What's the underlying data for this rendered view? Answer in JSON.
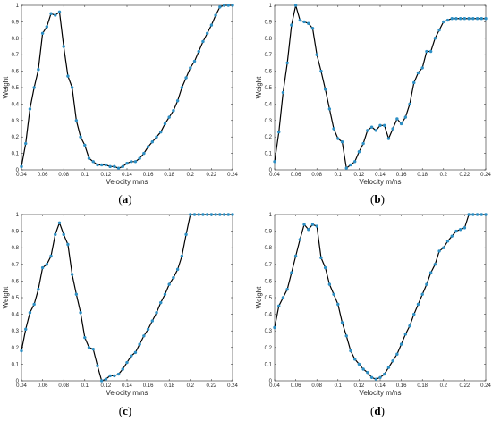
{
  "chart_data": [
    {
      "type": "line",
      "caption": "(a)",
      "xlabel": "Velocity m/ns",
      "ylabel": "Weight",
      "xlim": [
        0.04,
        0.24
      ],
      "ylim": [
        0,
        1
      ],
      "xticks": [
        "0.04",
        "0.06",
        "0.08",
        "0.1",
        "0.12",
        "0.14",
        "0.16",
        "0.18",
        "0.2",
        "0.22",
        "0.24"
      ],
      "yticks": [
        "0",
        "0.1",
        "0.2",
        "0.3",
        "0.4",
        "0.5",
        "0.6",
        "0.7",
        "0.8",
        "0.9",
        "1"
      ],
      "series": [
        {
          "x": [
            0.04,
            0.044,
            0.048,
            0.052,
            0.056,
            0.06,
            0.064,
            0.068,
            0.072,
            0.076,
            0.08,
            0.084,
            0.088,
            0.092,
            0.096,
            0.1,
            0.104,
            0.108,
            0.112,
            0.116,
            0.12,
            0.124,
            0.128,
            0.132,
            0.136,
            0.14,
            0.144,
            0.148,
            0.152,
            0.156,
            0.16,
            0.164,
            0.168,
            0.172,
            0.176,
            0.18,
            0.184,
            0.188,
            0.192,
            0.196,
            0.2,
            0.204,
            0.208,
            0.212,
            0.216,
            0.22,
            0.224,
            0.228,
            0.232,
            0.236,
            0.24
          ],
          "y": [
            0.02,
            0.16,
            0.37,
            0.5,
            0.61,
            0.83,
            0.87,
            0.95,
            0.94,
            0.96,
            0.75,
            0.57,
            0.5,
            0.3,
            0.2,
            0.15,
            0.07,
            0.05,
            0.03,
            0.03,
            0.03,
            0.02,
            0.02,
            0.01,
            0.02,
            0.04,
            0.05,
            0.05,
            0.07,
            0.1,
            0.14,
            0.17,
            0.2,
            0.23,
            0.28,
            0.32,
            0.36,
            0.42,
            0.5,
            0.56,
            0.62,
            0.66,
            0.72,
            0.78,
            0.83,
            0.88,
            0.94,
            0.99,
            1.0,
            1.0,
            1.0
          ]
        }
      ]
    },
    {
      "type": "line",
      "caption": "(b)",
      "xlabel": "Velocity m/ns",
      "ylabel": "Weight",
      "xlim": [
        0.04,
        0.24
      ],
      "ylim": [
        0,
        1
      ],
      "xticks": [
        "0.04",
        "0.06",
        "0.08",
        "0.1",
        "0.12",
        "0.14",
        "0.16",
        "0.18",
        "0.2",
        "0.22",
        "0.24"
      ],
      "yticks": [
        "0",
        "0.1",
        "0.2",
        "0.3",
        "0.4",
        "0.5",
        "0.6",
        "0.7",
        "0.8",
        "0.9",
        "1"
      ],
      "series": [
        {
          "x": [
            0.04,
            0.044,
            0.048,
            0.052,
            0.056,
            0.06,
            0.064,
            0.068,
            0.072,
            0.076,
            0.08,
            0.084,
            0.088,
            0.092,
            0.096,
            0.1,
            0.104,
            0.108,
            0.112,
            0.116,
            0.12,
            0.124,
            0.128,
            0.132,
            0.136,
            0.14,
            0.144,
            0.148,
            0.152,
            0.156,
            0.16,
            0.164,
            0.168,
            0.172,
            0.176,
            0.18,
            0.184,
            0.188,
            0.192,
            0.196,
            0.2,
            0.204,
            0.208,
            0.212,
            0.216,
            0.22,
            0.224,
            0.228,
            0.232,
            0.236,
            0.24
          ],
          "y": [
            0.05,
            0.23,
            0.47,
            0.65,
            0.88,
            1.0,
            0.91,
            0.9,
            0.89,
            0.86,
            0.7,
            0.6,
            0.49,
            0.37,
            0.25,
            0.19,
            0.17,
            0.01,
            0.03,
            0.05,
            0.11,
            0.16,
            0.24,
            0.26,
            0.24,
            0.27,
            0.27,
            0.19,
            0.25,
            0.31,
            0.28,
            0.32,
            0.4,
            0.53,
            0.59,
            0.62,
            0.72,
            0.72,
            0.8,
            0.85,
            0.9,
            0.91,
            0.92,
            0.92,
            0.92,
            0.92,
            0.92,
            0.92,
            0.92,
            0.92,
            0.92
          ]
        }
      ]
    },
    {
      "type": "line",
      "caption": "(c)",
      "xlabel": "Velocity m/ns",
      "ylabel": "Weight",
      "xlim": [
        0.04,
        0.24
      ],
      "ylim": [
        0,
        1
      ],
      "xticks": [
        "0.04",
        "0.06",
        "0.08",
        "0.1",
        "0.12",
        "0.14",
        "0.16",
        "0.18",
        "0.2",
        "0.22",
        "0.24"
      ],
      "yticks": [
        "0",
        "0.1",
        "0.2",
        "0.3",
        "0.4",
        "0.5",
        "0.6",
        "0.7",
        "0.8",
        "0.9",
        "1"
      ],
      "series": [
        {
          "x": [
            0.04,
            0.044,
            0.048,
            0.052,
            0.056,
            0.06,
            0.064,
            0.068,
            0.072,
            0.076,
            0.08,
            0.084,
            0.088,
            0.092,
            0.096,
            0.1,
            0.104,
            0.108,
            0.112,
            0.116,
            0.12,
            0.124,
            0.128,
            0.132,
            0.136,
            0.14,
            0.144,
            0.148,
            0.152,
            0.156,
            0.16,
            0.164,
            0.168,
            0.172,
            0.176,
            0.18,
            0.184,
            0.188,
            0.192,
            0.196,
            0.2,
            0.204,
            0.208,
            0.212,
            0.216,
            0.22,
            0.224,
            0.228,
            0.232,
            0.236,
            0.24
          ],
          "y": [
            0.18,
            0.31,
            0.41,
            0.46,
            0.55,
            0.68,
            0.7,
            0.75,
            0.88,
            0.95,
            0.88,
            0.82,
            0.64,
            0.52,
            0.41,
            0.26,
            0.2,
            0.19,
            0.09,
            0.0,
            0.01,
            0.03,
            0.03,
            0.04,
            0.07,
            0.11,
            0.15,
            0.17,
            0.22,
            0.27,
            0.31,
            0.36,
            0.41,
            0.47,
            0.52,
            0.58,
            0.62,
            0.67,
            0.75,
            0.88,
            1.0,
            1.0,
            1.0,
            1.0,
            1.0,
            1.0,
            1.0,
            1.0,
            1.0,
            1.0,
            1.0
          ]
        }
      ]
    },
    {
      "type": "line",
      "caption": "(d)",
      "xlabel": "Velocity m/ns",
      "ylabel": "Weight",
      "xlim": [
        0.04,
        0.24
      ],
      "ylim": [
        0,
        1
      ],
      "xticks": [
        "0.04",
        "0.06",
        "0.08",
        "0.1",
        "0.12",
        "0.14",
        "0.16",
        "0.18",
        "0.2",
        "0.22",
        "0.24"
      ],
      "yticks": [
        "0",
        "0.1",
        "0.2",
        "0.3",
        "0.4",
        "0.5",
        "0.6",
        "0.7",
        "0.8",
        "0.9",
        "1"
      ],
      "series": [
        {
          "x": [
            0.04,
            0.044,
            0.048,
            0.052,
            0.056,
            0.06,
            0.064,
            0.068,
            0.072,
            0.076,
            0.08,
            0.084,
            0.088,
            0.092,
            0.096,
            0.1,
            0.104,
            0.108,
            0.112,
            0.116,
            0.12,
            0.124,
            0.128,
            0.132,
            0.136,
            0.14,
            0.144,
            0.148,
            0.152,
            0.156,
            0.16,
            0.164,
            0.168,
            0.172,
            0.176,
            0.18,
            0.184,
            0.188,
            0.192,
            0.196,
            0.2,
            0.204,
            0.208,
            0.212,
            0.216,
            0.22,
            0.224,
            0.228,
            0.232,
            0.236,
            0.24
          ],
          "y": [
            0.32,
            0.45,
            0.5,
            0.55,
            0.65,
            0.75,
            0.85,
            0.94,
            0.91,
            0.94,
            0.93,
            0.74,
            0.68,
            0.58,
            0.52,
            0.46,
            0.35,
            0.27,
            0.18,
            0.13,
            0.1,
            0.07,
            0.05,
            0.02,
            0.01,
            0.02,
            0.04,
            0.08,
            0.12,
            0.16,
            0.22,
            0.28,
            0.33,
            0.4,
            0.46,
            0.52,
            0.58,
            0.65,
            0.7,
            0.78,
            0.8,
            0.84,
            0.87,
            0.9,
            0.91,
            0.92,
            1.0,
            1.0,
            1.0,
            1.0,
            1.0
          ]
        }
      ]
    }
  ],
  "style": {
    "line_color": "#000000",
    "marker_color": "#2d8fc4",
    "axis_color": "#262626"
  }
}
